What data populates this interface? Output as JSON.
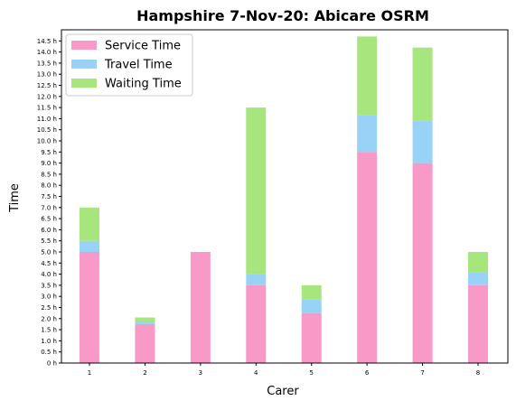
{
  "chart_data": {
    "type": "bar",
    "stacked": true,
    "title": "Hampshire 7-Nov-20: Abicare OSRM",
    "xlabel": "Carer",
    "ylabel": "Time",
    "categories": [
      "1",
      "2",
      "3",
      "4",
      "5",
      "6",
      "7",
      "8"
    ],
    "series": [
      {
        "name": "Service Time",
        "color": "#f999c8",
        "values": [
          5.0,
          1.75,
          5.0,
          3.5,
          2.25,
          9.5,
          9.0,
          3.5
        ]
      },
      {
        "name": "Travel Time",
        "color": "#98d3f7",
        "values": [
          0.5,
          0.1,
          0.0,
          0.5,
          0.6,
          1.65,
          1.9,
          0.6
        ]
      },
      {
        "name": "Waiting Time",
        "color": "#a6e67c",
        "values": [
          1.5,
          0.2,
          0.0,
          7.5,
          0.65,
          3.55,
          3.3,
          0.9
        ]
      }
    ],
    "yticks": [
      0,
      0.5,
      1.0,
      1.5,
      2.0,
      2.5,
      3.0,
      3.5,
      4.0,
      4.5,
      5.0,
      5.5,
      6.0,
      6.5,
      7.0,
      7.5,
      8.0,
      8.5,
      9.0,
      9.5,
      10.0,
      10.5,
      11.0,
      11.5,
      12.0,
      12.5,
      13.0,
      13.5,
      14.0,
      14.5
    ],
    "ytick_labels": [
      "0 h",
      "0.5 h",
      "1.0 h",
      "1.5 h",
      "2.0 h",
      "2.5 h",
      "3.0 h",
      "3.5 h",
      "4.0 h",
      "4.5 h",
      "5.0 h",
      "5.5 h",
      "6.0 h",
      "6.5 h",
      "7.0 h",
      "7.5 h",
      "8.0 h",
      "8.5 h",
      "9.0 h",
      "9.5 h",
      "10.0 h",
      "10.5 h",
      "11.0 h",
      "11.5 h",
      "12.0 h",
      "12.5 h",
      "13.0 h",
      "13.5 h",
      "14.0 h",
      "14.5 h"
    ],
    "ylim": [
      0,
      15.0
    ],
    "grid": false,
    "legend_position": "top-left"
  }
}
